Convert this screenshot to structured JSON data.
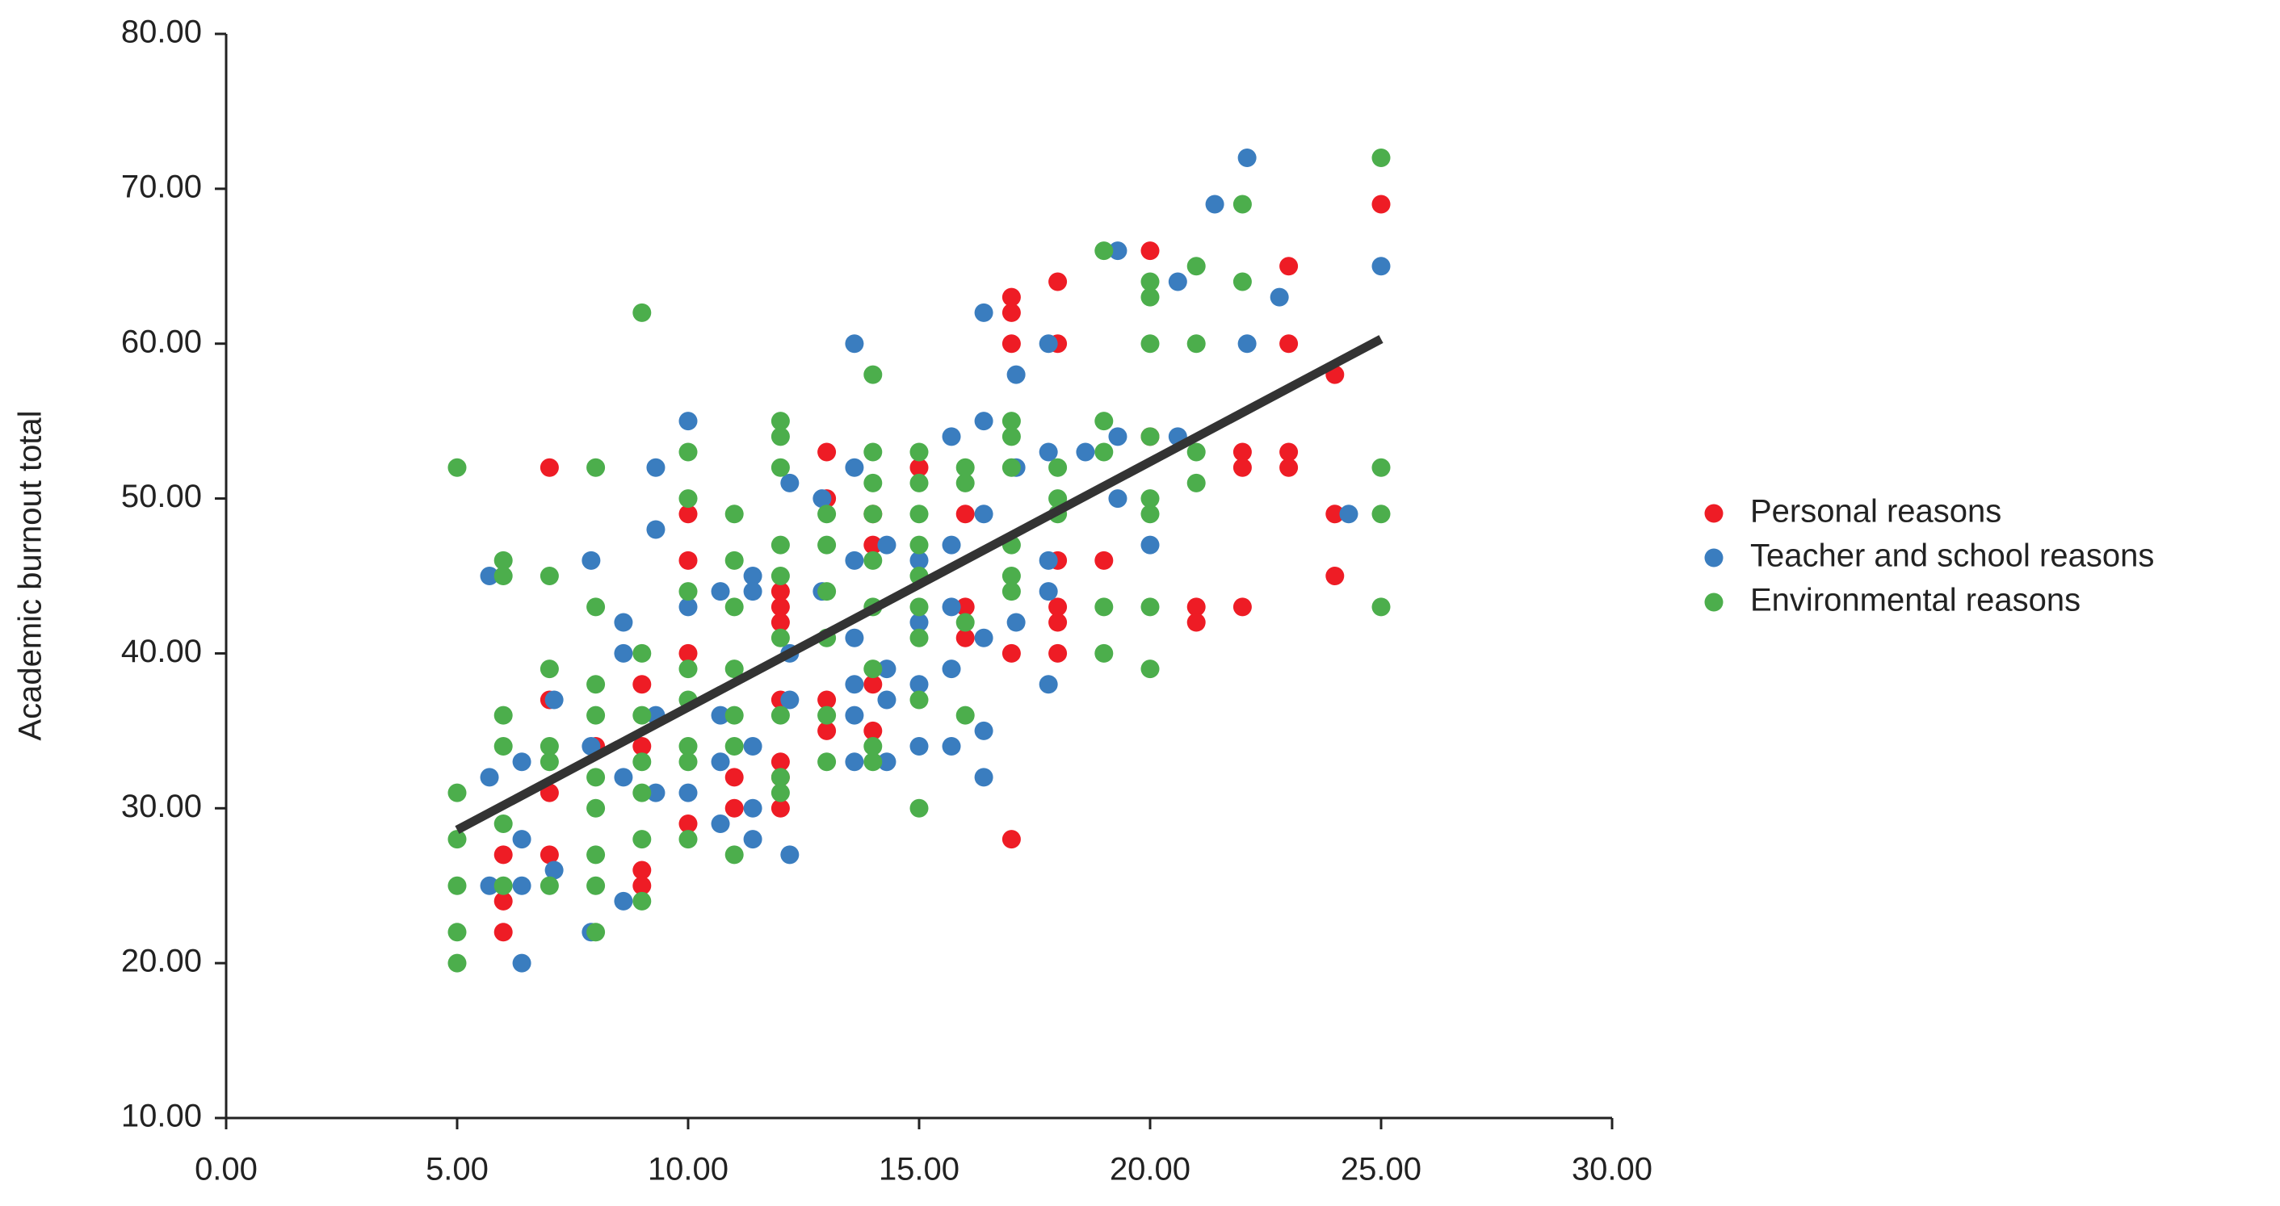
{
  "chart_data": {
    "type": "scatter",
    "y_label": "Academic burnout total",
    "xlim": [
      0,
      30
    ],
    "xticks": [
      {
        "value": 0,
        "label": "0.00"
      },
      {
        "value": 5,
        "label": "5.00"
      },
      {
        "value": 10,
        "label": "10.00"
      },
      {
        "value": 15,
        "label": "15.00"
      },
      {
        "value": 20,
        "label": "20.00"
      },
      {
        "value": 25,
        "label": "25.00"
      },
      {
        "value": 30,
        "label": "30.00"
      }
    ],
    "ylim": [
      10,
      80
    ],
    "yticks": [
      {
        "value": 10,
        "label": "10.00"
      },
      {
        "value": 20,
        "label": "20.00"
      },
      {
        "value": 30,
        "label": "30.00"
      },
      {
        "value": 40,
        "label": "40.00"
      },
      {
        "value": 50,
        "label": "50.00"
      },
      {
        "value": 60,
        "label": "60.00"
      },
      {
        "value": 70,
        "label": "70.00"
      },
      {
        "value": 80,
        "label": "80.00"
      }
    ],
    "grid": false,
    "legend": "right",
    "series": [
      {
        "name": "Personal reasons",
        "color": "#ee1c25",
        "x": [
          7,
          25,
          24,
          24,
          24,
          23,
          23,
          23,
          23,
          22,
          22,
          22,
          21,
          21,
          20,
          18,
          18,
          17,
          17,
          17,
          17,
          17,
          18,
          18,
          18,
          18,
          19,
          16,
          16,
          16,
          15,
          14,
          14,
          14,
          14,
          13,
          13,
          13,
          13,
          12,
          12,
          12,
          12,
          12,
          12,
          12,
          11,
          11,
          10,
          10,
          10,
          10,
          9,
          9,
          9,
          9,
          8,
          7,
          7,
          7,
          6,
          6,
          6,
          20
        ],
        "y": [
          52,
          69,
          58,
          49,
          45,
          65,
          60,
          53,
          52,
          53,
          52,
          43,
          43,
          42,
          66,
          64,
          60,
          63,
          62,
          60,
          40,
          28,
          40,
          42,
          43,
          46,
          46,
          43,
          41,
          49,
          52,
          49,
          47,
          38,
          35,
          53,
          50,
          37,
          35,
          44,
          43,
          42,
          37,
          33,
          30,
          32,
          32,
          30,
          49,
          46,
          40,
          29,
          38,
          34,
          26,
          25,
          34,
          37,
          31,
          27,
          27,
          24,
          22,
          54
        ]
      },
      {
        "name": "Teacher and school reasons",
        "color": "#3a7dbf",
        "x": [
          22.1,
          21.4,
          22.8,
          22.1,
          25,
          24.3,
          19.3,
          20.6,
          20.6,
          20,
          19.3,
          19.3,
          18.6,
          17.8,
          17.8,
          17.8,
          17.8,
          17.8,
          17.1,
          17.1,
          17.1,
          16.4,
          16.4,
          16.4,
          16.4,
          16.4,
          16.4,
          15.7,
          15.7,
          15.7,
          15.7,
          15.7,
          15,
          15,
          15,
          15,
          14.3,
          14.3,
          14.3,
          14.3,
          13.6,
          13.6,
          13.6,
          13.6,
          13.6,
          13.6,
          13.6,
          12.9,
          12.9,
          12.2,
          12.2,
          12.2,
          12.2,
          11.4,
          11.4,
          11.4,
          11.4,
          11.4,
          10.7,
          10.7,
          10.7,
          10.7,
          10,
          10,
          10,
          9.3,
          9.3,
          9.3,
          9.3,
          8.6,
          8.6,
          8.6,
          8.6,
          7.9,
          7.9,
          7.9,
          7.1,
          7.1,
          6.4,
          6.4,
          6.4,
          6.4,
          5.7,
          5.7,
          5.7
        ],
        "y": [
          72,
          69,
          63,
          60,
          65,
          49,
          66,
          64,
          54,
          47,
          54,
          50,
          53,
          60,
          53,
          44,
          38,
          46,
          58,
          52,
          42,
          62,
          55,
          49,
          41,
          35,
          32,
          54,
          47,
          43,
          39,
          34,
          46,
          42,
          38,
          34,
          47,
          39,
          37,
          33,
          60,
          52,
          46,
          41,
          38,
          36,
          33,
          50,
          44,
          51,
          40,
          37,
          27,
          45,
          44,
          34,
          30,
          28,
          44,
          36,
          33,
          29,
          55,
          43,
          31,
          52,
          48,
          36,
          31,
          42,
          40,
          32,
          24,
          46,
          34,
          22,
          37,
          26,
          33,
          28,
          25,
          20,
          45,
          32,
          25
        ]
      },
      {
        "name": "Environmental reasons",
        "color": "#4cae4c",
        "x": [
          25,
          25,
          25,
          25,
          22,
          22,
          21,
          21,
          21,
          21,
          20,
          20,
          20,
          20,
          20,
          20,
          20,
          20,
          19,
          19,
          19,
          19,
          19,
          18,
          18,
          18,
          17,
          17,
          17,
          17,
          17,
          17,
          16,
          16,
          16,
          16,
          15,
          15,
          15,
          15,
          15,
          15,
          15,
          15,
          15,
          14,
          14,
          14,
          14,
          14,
          14,
          14,
          14,
          14,
          13,
          13,
          13,
          13,
          13,
          13,
          12,
          12,
          12,
          12,
          12,
          12,
          12,
          12,
          12,
          11,
          11,
          11,
          11,
          11,
          11,
          11,
          10,
          10,
          10,
          10,
          10,
          10,
          10,
          10,
          9,
          9,
          9,
          9,
          9,
          9,
          9,
          8,
          8,
          8,
          8,
          8,
          8,
          8,
          8,
          8,
          7,
          7,
          7,
          7,
          7,
          6,
          6,
          6,
          6,
          6,
          6,
          5,
          5,
          5,
          5,
          5,
          5
        ],
        "y": [
          72,
          52,
          49,
          43,
          69,
          64,
          65,
          60,
          53,
          51,
          64,
          63,
          60,
          54,
          50,
          49,
          43,
          39,
          66,
          55,
          53,
          43,
          40,
          52,
          50,
          49,
          55,
          54,
          52,
          47,
          45,
          44,
          52,
          51,
          42,
          36,
          53,
          51,
          49,
          47,
          45,
          43,
          41,
          37,
          30,
          58,
          53,
          51,
          49,
          46,
          43,
          39,
          34,
          33,
          49,
          47,
          44,
          41,
          36,
          33,
          55,
          54,
          52,
          47,
          45,
          41,
          36,
          32,
          31,
          49,
          46,
          43,
          39,
          36,
          34,
          27,
          53,
          50,
          44,
          39,
          37,
          34,
          33,
          28,
          62,
          40,
          36,
          33,
          31,
          28,
          24,
          52,
          43,
          38,
          36,
          32,
          30,
          27,
          25,
          22,
          45,
          39,
          34,
          33,
          25,
          46,
          45,
          36,
          34,
          29,
          25,
          52,
          31,
          28,
          25,
          22,
          20
        ]
      }
    ],
    "trendline": {
      "color": "#333333",
      "x": [
        5,
        25
      ],
      "y": [
        28.6,
        60.3
      ]
    }
  }
}
